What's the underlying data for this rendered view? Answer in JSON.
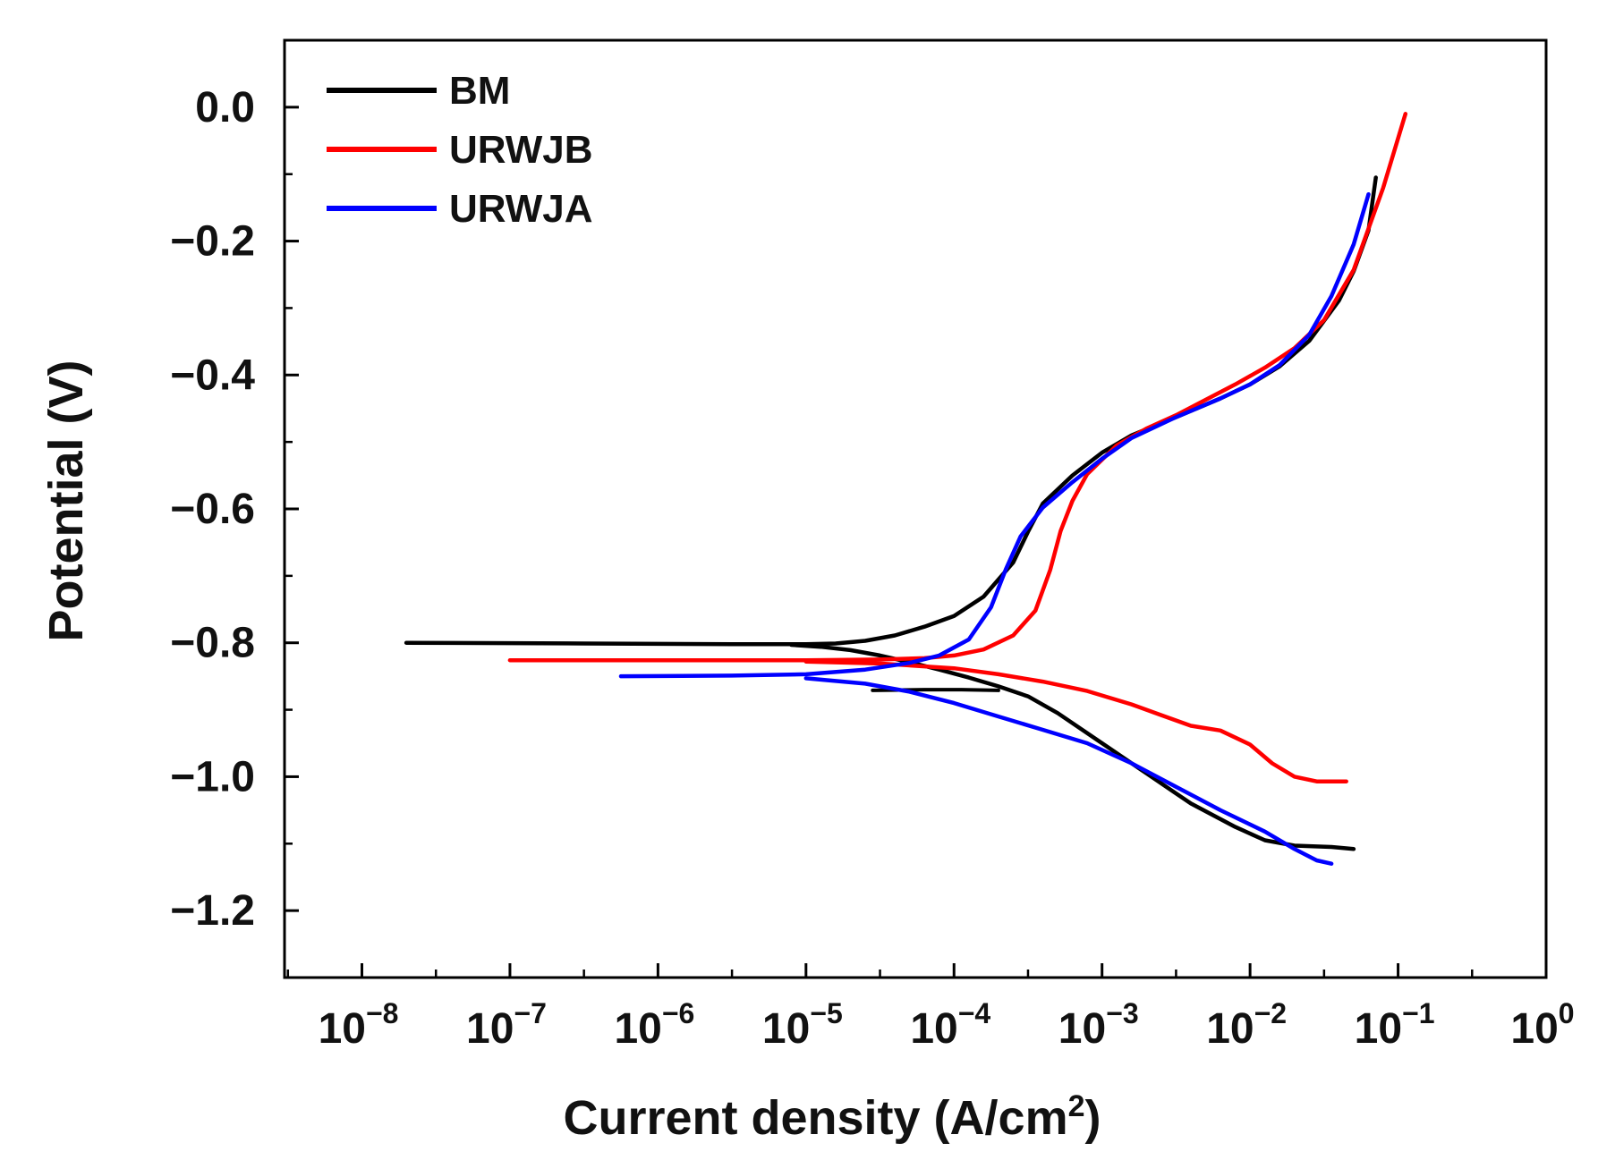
{
  "chart_data": {
    "type": "line",
    "title": "",
    "xlabel": "Current  density (A/cm²)",
    "xlabel_main": "Current  density (A/cm",
    "xlabel_sup": "2",
    "xlabel_tail": ")",
    "ylabel": "Potential (V)",
    "xscale": "log",
    "xlim": [
      3e-09,
      1
    ],
    "ylim": [
      -1.3,
      0.1
    ],
    "grid": false,
    "legend_position": "top-left",
    "xticks": [
      {
        "exp": -8,
        "label_base": "10",
        "label_exp": "−8"
      },
      {
        "exp": -7,
        "label_base": "10",
        "label_exp": "−7"
      },
      {
        "exp": -6,
        "label_base": "10",
        "label_exp": "−6"
      },
      {
        "exp": -5,
        "label_base": "10",
        "label_exp": "−5"
      },
      {
        "exp": -4,
        "label_base": "10",
        "label_exp": "−4"
      },
      {
        "exp": -3,
        "label_base": "10",
        "label_exp": "−3"
      },
      {
        "exp": -2,
        "label_base": "10",
        "label_exp": "−2"
      },
      {
        "exp": -1,
        "label_base": "10",
        "label_exp": "−1"
      },
      {
        "exp": 0,
        "label_base": "10",
        "label_exp": "0"
      }
    ],
    "yticks": [
      {
        "value": 0.0,
        "label": "0.0"
      },
      {
        "value": -0.2,
        "label": "−0.2"
      },
      {
        "value": -0.4,
        "label": "−0.4"
      },
      {
        "value": -0.6,
        "label": "−0.6"
      },
      {
        "value": -0.8,
        "label": "−0.8"
      },
      {
        "value": -1.0,
        "label": "−1.0"
      },
      {
        "value": -1.2,
        "label": "−1.2"
      }
    ],
    "series": [
      {
        "name": "BM",
        "color": "#000000",
        "points": [
          [
            -7.7,
            -0.8
          ],
          [
            -6.5,
            -0.801
          ],
          [
            -5.5,
            -0.802
          ],
          [
            -5.0,
            -0.802
          ],
          [
            -4.8,
            -0.801
          ],
          [
            -4.6,
            -0.797
          ],
          [
            -4.4,
            -0.789
          ],
          [
            -4.2,
            -0.776
          ],
          [
            -4.0,
            -0.76
          ],
          [
            -3.8,
            -0.731
          ],
          [
            -3.6,
            -0.68
          ],
          [
            -3.5,
            -0.634
          ],
          [
            -3.4,
            -0.592
          ],
          [
            -3.2,
            -0.55
          ],
          [
            -3.0,
            -0.516
          ],
          [
            -2.8,
            -0.49
          ],
          [
            -2.5,
            -0.463
          ],
          [
            -2.2,
            -0.435
          ],
          [
            -2.0,
            -0.414
          ],
          [
            -1.8,
            -0.387
          ],
          [
            -1.6,
            -0.349
          ],
          [
            -1.4,
            -0.289
          ],
          [
            -1.3,
            -0.245
          ],
          [
            -1.2,
            -0.184
          ],
          [
            -1.15,
            -0.105
          ]
        ],
        "branch_points": [
          [
            -5.1,
            -0.803
          ],
          [
            -4.9,
            -0.806
          ],
          [
            -4.7,
            -0.811
          ],
          [
            -4.5,
            -0.819
          ],
          [
            -4.3,
            -0.829
          ],
          [
            -4.1,
            -0.84
          ],
          [
            -3.9,
            -0.852
          ],
          [
            -3.7,
            -0.865
          ],
          [
            -3.5,
            -0.88
          ],
          [
            -3.3,
            -0.905
          ],
          [
            -3.0,
            -0.95
          ],
          [
            -2.7,
            -0.995
          ],
          [
            -2.4,
            -1.04
          ],
          [
            -2.1,
            -1.075
          ],
          [
            -1.9,
            -1.095
          ],
          [
            -1.7,
            -1.103
          ],
          [
            -1.45,
            -1.105
          ],
          [
            -1.3,
            -1.108
          ]
        ],
        "extra_points": [
          [
            -4.55,
            -0.871
          ],
          [
            -4.2,
            -0.87
          ],
          [
            -3.95,
            -0.87
          ],
          [
            -3.7,
            -0.871
          ]
        ]
      },
      {
        "name": "URWJB",
        "color": "#ff0000",
        "points": [
          [
            -7.0,
            -0.826
          ],
          [
            -6.0,
            -0.826
          ],
          [
            -5.0,
            -0.826
          ],
          [
            -4.5,
            -0.825
          ],
          [
            -4.2,
            -0.823
          ],
          [
            -4.0,
            -0.819
          ],
          [
            -3.8,
            -0.81
          ],
          [
            -3.6,
            -0.789
          ],
          [
            -3.45,
            -0.752
          ],
          [
            -3.35,
            -0.691
          ],
          [
            -3.28,
            -0.633
          ],
          [
            -3.2,
            -0.588
          ],
          [
            -3.1,
            -0.548
          ],
          [
            -2.9,
            -0.505
          ],
          [
            -2.7,
            -0.48
          ],
          [
            -2.5,
            -0.46
          ],
          [
            -2.3,
            -0.437
          ],
          [
            -2.1,
            -0.414
          ],
          [
            -1.9,
            -0.389
          ],
          [
            -1.7,
            -0.36
          ],
          [
            -1.5,
            -0.318
          ],
          [
            -1.3,
            -0.243
          ],
          [
            -1.1,
            -0.12
          ],
          [
            -0.95,
            -0.01
          ]
        ],
        "branch_points": [
          [
            -5.0,
            -0.828
          ],
          [
            -4.5,
            -0.831
          ],
          [
            -4.0,
            -0.838
          ],
          [
            -3.7,
            -0.847
          ],
          [
            -3.4,
            -0.858
          ],
          [
            -3.1,
            -0.872
          ],
          [
            -2.8,
            -0.892
          ],
          [
            -2.6,
            -0.908
          ],
          [
            -2.4,
            -0.924
          ],
          [
            -2.2,
            -0.931
          ],
          [
            -2.0,
            -0.952
          ],
          [
            -1.85,
            -0.98
          ],
          [
            -1.7,
            -1.0
          ],
          [
            -1.55,
            -1.007
          ],
          [
            -1.35,
            -1.007
          ]
        ]
      },
      {
        "name": "URWJA",
        "color": "#0000ff",
        "points": [
          [
            -6.25,
            -0.85
          ],
          [
            -5.5,
            -0.849
          ],
          [
            -5.0,
            -0.847
          ],
          [
            -4.6,
            -0.84
          ],
          [
            -4.3,
            -0.83
          ],
          [
            -4.1,
            -0.819
          ],
          [
            -3.9,
            -0.795
          ],
          [
            -3.75,
            -0.747
          ],
          [
            -3.65,
            -0.69
          ],
          [
            -3.55,
            -0.641
          ],
          [
            -3.4,
            -0.598
          ],
          [
            -3.2,
            -0.56
          ],
          [
            -3.0,
            -0.525
          ],
          [
            -2.8,
            -0.494
          ],
          [
            -2.5,
            -0.463
          ],
          [
            -2.2,
            -0.435
          ],
          [
            -2.0,
            -0.414
          ],
          [
            -1.8,
            -0.385
          ],
          [
            -1.6,
            -0.34
          ],
          [
            -1.45,
            -0.282
          ],
          [
            -1.3,
            -0.205
          ],
          [
            -1.2,
            -0.13
          ]
        ],
        "branch_points": [
          [
            -5.0,
            -0.853
          ],
          [
            -4.6,
            -0.861
          ],
          [
            -4.3,
            -0.873
          ],
          [
            -4.0,
            -0.89
          ],
          [
            -3.7,
            -0.91
          ],
          [
            -3.4,
            -0.93
          ],
          [
            -3.1,
            -0.95
          ],
          [
            -2.8,
            -0.98
          ],
          [
            -2.5,
            -1.015
          ],
          [
            -2.2,
            -1.05
          ],
          [
            -1.9,
            -1.082
          ],
          [
            -1.7,
            -1.108
          ],
          [
            -1.55,
            -1.125
          ],
          [
            -1.45,
            -1.13
          ]
        ]
      }
    ]
  }
}
